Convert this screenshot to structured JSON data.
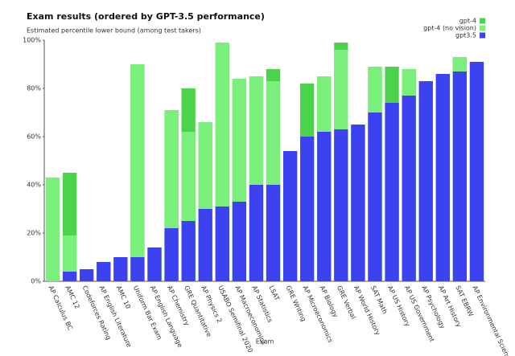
{
  "chart_data": {
    "type": "bar",
    "barmode": "overlay",
    "title": "Exam results (ordered by GPT-3.5 performance)",
    "subtitle": "Estimated percentile lower bound (among test takers)",
    "x_label": "Exam",
    "categories": [
      "AP Calculus BC",
      "AMC 12",
      "Codeforces Rating",
      "AP English Literature",
      "AMC 10",
      "Uniform Bar Exam",
      "AP English Language",
      "AP Chemistry",
      "GRE Quantitative",
      "AP Physics 2",
      "USABO Semifinal 2020",
      "AP Macroeconomics",
      "AP Statistics",
      "LSAT",
      "GRE Writing",
      "AP Microeconomics",
      "AP Biology",
      "GRE Verbal",
      "AP World History",
      "SAT Math",
      "AP US History",
      "AP US Government",
      "AP Psychology",
      "AP Art History",
      "SAT EBRW",
      "AP Environmental Science"
    ],
    "series": [
      {
        "name": "gpt-4",
        "color": "#4bd44b",
        "values": [
          43,
          45,
          0,
          8,
          10,
          90,
          14,
          71,
          80,
          66,
          99,
          84,
          85,
          88,
          54,
          82,
          85,
          99,
          65,
          89,
          89,
          88,
          83,
          86,
          93,
          91
        ]
      },
      {
        "name": "gpt-4 (no vision)",
        "color": "#7bef7b",
        "values": [
          43,
          19,
          0,
          8,
          10,
          90,
          14,
          71,
          62,
          66,
          99,
          84,
          85,
          83,
          54,
          60,
          85,
          96,
          65,
          89,
          74,
          88,
          83,
          86,
          93,
          91
        ]
      },
      {
        "name": "gpt3.5",
        "color": "#3c42ef",
        "values": [
          0,
          4,
          5,
          8,
          10,
          10,
          14,
          22,
          25,
          30,
          31,
          33,
          40,
          40,
          54,
          60,
          62,
          63,
          65,
          70,
          74,
          77,
          83,
          86,
          87,
          91
        ]
      }
    ],
    "ylim": [
      0,
      100
    ],
    "yticks": [
      {
        "value": 0,
        "label": "0%"
      },
      {
        "value": 20,
        "label": "20%"
      },
      {
        "value": 40,
        "label": "40%"
      },
      {
        "value": 60,
        "label": "60%"
      },
      {
        "value": 80,
        "label": "80%"
      },
      {
        "value": 100,
        "label": "100%"
      }
    ],
    "legend": "top-right"
  }
}
